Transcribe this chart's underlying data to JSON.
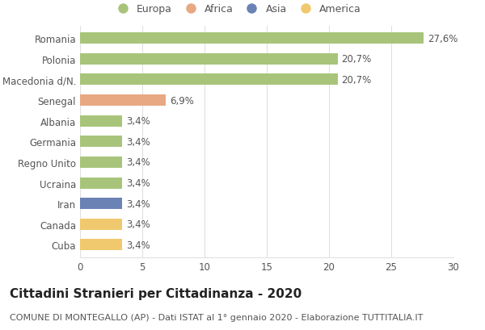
{
  "countries": [
    "Romania",
    "Polonia",
    "Macedonia d/N.",
    "Senegal",
    "Albania",
    "Germania",
    "Regno Unito",
    "Ucraina",
    "Iran",
    "Canada",
    "Cuba"
  ],
  "values": [
    27.6,
    20.7,
    20.7,
    6.9,
    3.4,
    3.4,
    3.4,
    3.4,
    3.4,
    3.4,
    3.4
  ],
  "labels": [
    "27,6%",
    "20,7%",
    "20,7%",
    "6,9%",
    "3,4%",
    "3,4%",
    "3,4%",
    "3,4%",
    "3,4%",
    "3,4%",
    "3,4%"
  ],
  "colors": [
    "#a8c47a",
    "#a8c47a",
    "#a8c47a",
    "#e8a882",
    "#a8c47a",
    "#a8c47a",
    "#a8c47a",
    "#a8c47a",
    "#6b82b5",
    "#f0c96e",
    "#f0c96e"
  ],
  "continent_labels": [
    "Europa",
    "Africa",
    "Asia",
    "America"
  ],
  "continent_colors": [
    "#a8c47a",
    "#e8a882",
    "#6b82b5",
    "#f0c96e"
  ],
  "title": "Cittadini Stranieri per Cittadinanza - 2020",
  "subtitle": "COMUNE DI MONTEGALLO (AP) - Dati ISTAT al 1° gennaio 2020 - Elaborazione TUTTITALIA.IT",
  "xlim": [
    0,
    30
  ],
  "xticks": [
    0,
    5,
    10,
    15,
    20,
    25,
    30
  ],
  "background_color": "#ffffff",
  "grid_color": "#e0e0e0",
  "title_fontsize": 11,
  "subtitle_fontsize": 8,
  "bar_label_fontsize": 8.5,
  "ytick_fontsize": 8.5,
  "xtick_fontsize": 8.5,
  "legend_fontsize": 9,
  "bar_height": 0.55
}
